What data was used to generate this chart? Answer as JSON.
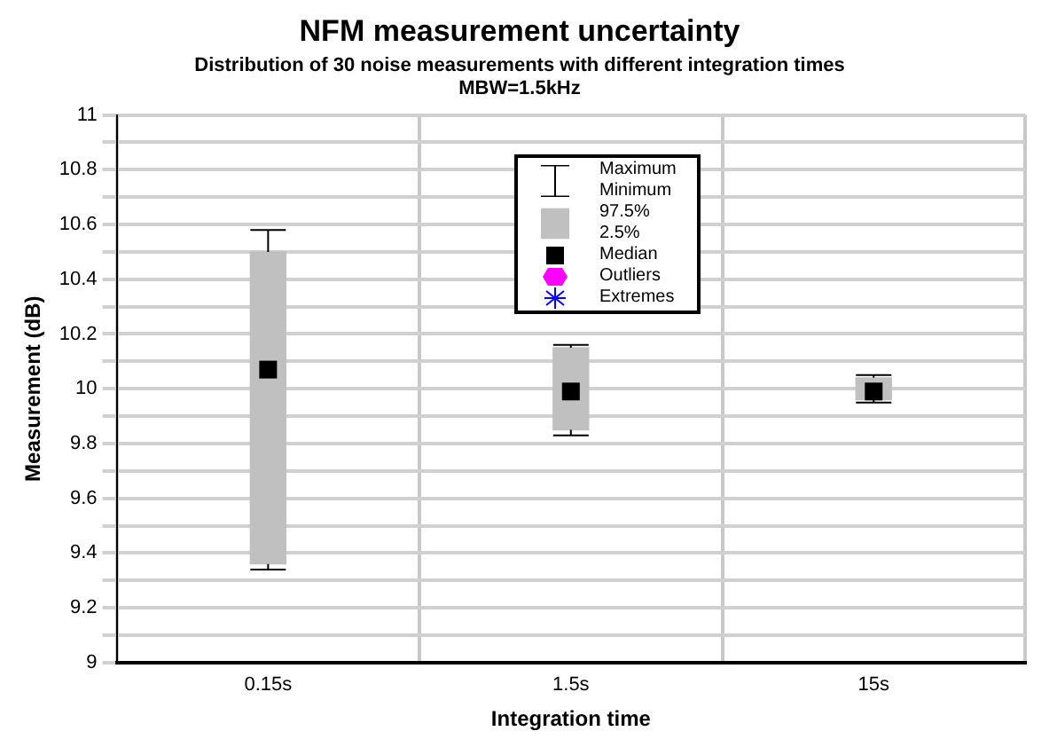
{
  "chart_data": {
    "type": "box",
    "title": "NFM measurement uncertainty",
    "subtitle": "Distribution of 30 noise measurements with different integration times\nMBW=1.5kHz",
    "xlabel": "Integration time",
    "ylabel": "Measurement (dB)",
    "categories": [
      "0.15s",
      "1.5s",
      "15s"
    ],
    "color": "#c0c0c0",
    "boxes": [
      {
        "low": 9.34,
        "q1": 9.36,
        "median": 10.07,
        "q3": 10.5,
        "high": 10.58
      },
      {
        "low": 9.83,
        "q1": 9.85,
        "median": 9.99,
        "q3": 10.15,
        "high": 10.16
      },
      {
        "low": 9.95,
        "q1": 9.96,
        "median": 9.99,
        "q3": 10.04,
        "high": 10.05
      }
    ],
    "ylim": [
      9,
      11
    ],
    "yticks": [
      9,
      {
        "value": 9.1,
        "label": null
      },
      9.2,
      {
        "value": 9.3,
        "label": null
      },
      9.4,
      {
        "value": 9.5,
        "label": null
      },
      9.6,
      {
        "value": 9.7,
        "label": null
      },
      9.8,
      {
        "value": 9.9,
        "label": null
      },
      10,
      {
        "value": 10.1,
        "label": null
      },
      10.2,
      {
        "value": 10.3,
        "label": null
      },
      10.4,
      {
        "value": 10.5,
        "label": null
      },
      10.6,
      {
        "value": 10.7,
        "label": null
      },
      10.8,
      {
        "value": 10.9,
        "label": null
      },
      11
    ],
    "grid": true,
    "annotations": [
      "Maximum",
      "Minimum",
      "97.5%",
      "2.5%",
      "Median",
      "Outliers",
      "Extremes"
    ]
  }
}
